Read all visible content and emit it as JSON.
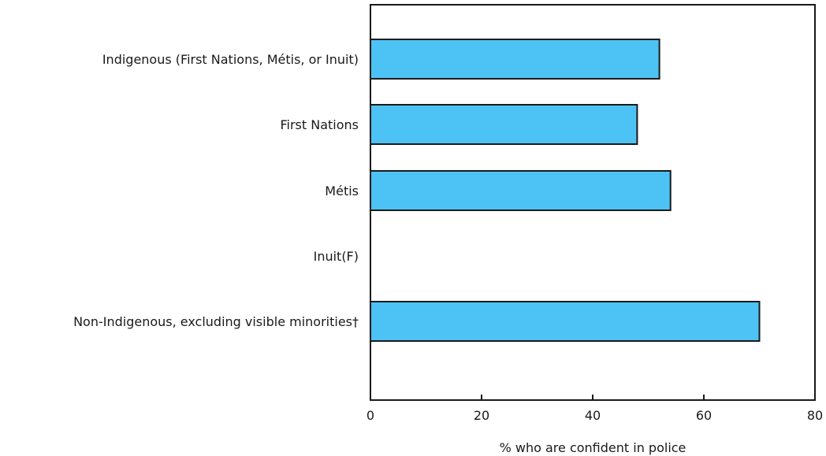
{
  "chart_data": {
    "type": "bar",
    "orientation": "horizontal",
    "categories": [
      "Indigenous (First Nations, Métis, or Inuit)",
      "First Nations",
      "Métis",
      "Inuit(F)",
      "Non-Indigenous, excluding visible minorities†"
    ],
    "values": [
      52,
      48,
      54,
      null,
      70
    ],
    "xlabel": "% who are confident in police",
    "ylabel": "",
    "xlim": [
      0,
      80
    ],
    "xticks": [
      "0",
      "20",
      "40",
      "60",
      "80"
    ],
    "grid": false,
    "bar_color": "#4dc3f5",
    "bar_edge_color": "#1a1a1a"
  }
}
